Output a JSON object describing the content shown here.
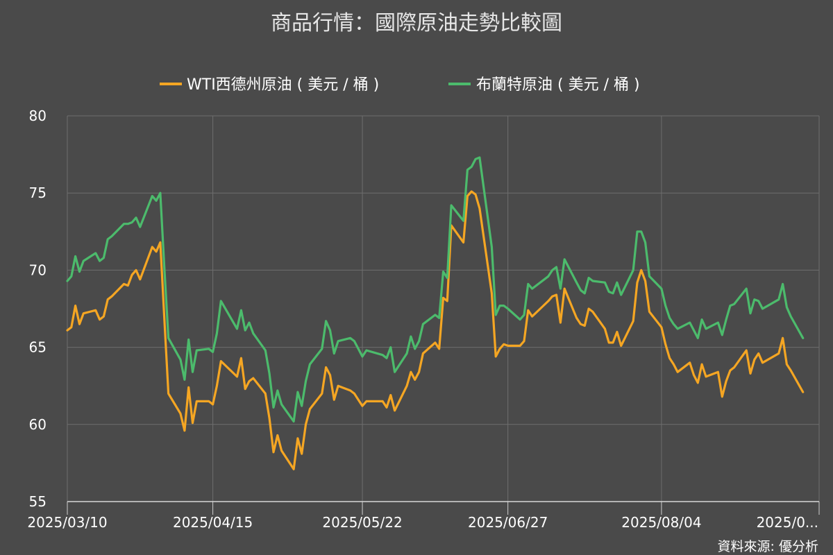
{
  "chart_data": {
    "type": "line",
    "title": "商品行情：國際原油走勢比較圖",
    "source": "資料來源: 優分析",
    "ylim": [
      55,
      80
    ],
    "yticks": [
      55,
      60,
      65,
      70,
      75,
      80
    ],
    "xlim": [
      "2025-03-10",
      "2025-09-12"
    ],
    "xtick_dates": [
      "2025-03-10",
      "2025-04-15",
      "2025-05-22",
      "2025-06-27",
      "2025-08-04",
      "2025-09-12"
    ],
    "xtick_labels": [
      "2025/03/10",
      "2025/04/15",
      "2025/05/22",
      "2025/06/27",
      "2025/08/04",
      "2025/0..."
    ],
    "grid": true,
    "legend_position": "top-center",
    "series": [
      {
        "name": "WTI西德州原油 ( 美元 / 桶 )",
        "color": "#f5a623",
        "points": [
          [
            "2025-03-10",
            66.1
          ],
          [
            "2025-03-11",
            66.3
          ],
          [
            "2025-03-12",
            67.7
          ],
          [
            "2025-03-13",
            66.5
          ],
          [
            "2025-03-14",
            67.2
          ],
          [
            "2025-03-17",
            67.4
          ],
          [
            "2025-03-18",
            66.8
          ],
          [
            "2025-03-19",
            67.0
          ],
          [
            "2025-03-20",
            68.1
          ],
          [
            "2025-03-21",
            68.3
          ],
          [
            "2025-03-24",
            69.1
          ],
          [
            "2025-03-25",
            69.0
          ],
          [
            "2025-03-26",
            69.7
          ],
          [
            "2025-03-27",
            70.0
          ],
          [
            "2025-03-28",
            69.4
          ],
          [
            "2025-03-31",
            71.5
          ],
          [
            "2025-04-01",
            71.2
          ],
          [
            "2025-04-02",
            71.8
          ],
          [
            "2025-04-03",
            66.9
          ],
          [
            "2025-04-04",
            62.0
          ],
          [
            "2025-04-07",
            60.7
          ],
          [
            "2025-04-08",
            59.6
          ],
          [
            "2025-04-09",
            62.4
          ],
          [
            "2025-04-10",
            60.1
          ],
          [
            "2025-04-11",
            61.5
          ],
          [
            "2025-04-14",
            61.5
          ],
          [
            "2025-04-15",
            61.3
          ],
          [
            "2025-04-16",
            62.5
          ],
          [
            "2025-04-17",
            64.1
          ],
          [
            "2025-04-21",
            63.1
          ],
          [
            "2025-04-22",
            64.3
          ],
          [
            "2025-04-23",
            62.3
          ],
          [
            "2025-04-24",
            62.8
          ],
          [
            "2025-04-25",
            63.0
          ],
          [
            "2025-04-28",
            62.0
          ],
          [
            "2025-04-29",
            60.4
          ],
          [
            "2025-04-30",
            58.2
          ],
          [
            "2025-05-01",
            59.3
          ],
          [
            "2025-05-02",
            58.3
          ],
          [
            "2025-05-05",
            57.1
          ],
          [
            "2025-05-06",
            59.1
          ],
          [
            "2025-05-07",
            58.1
          ],
          [
            "2025-05-08",
            60.0
          ],
          [
            "2025-05-09",
            61.0
          ],
          [
            "2025-05-12",
            62.0
          ],
          [
            "2025-05-13",
            63.7
          ],
          [
            "2025-05-14",
            63.2
          ],
          [
            "2025-05-15",
            61.6
          ],
          [
            "2025-05-16",
            62.5
          ],
          [
            "2025-05-19",
            62.2
          ],
          [
            "2025-05-20",
            62.0
          ],
          [
            "2025-05-21",
            61.6
          ],
          [
            "2025-05-22",
            61.2
          ],
          [
            "2025-05-23",
            61.5
          ],
          [
            "2025-05-27",
            61.5
          ],
          [
            "2025-05-28",
            61.1
          ],
          [
            "2025-05-29",
            61.9
          ],
          [
            "2025-05-30",
            60.9
          ],
          [
            "2025-06-02",
            62.5
          ],
          [
            "2025-06-03",
            63.4
          ],
          [
            "2025-06-04",
            62.9
          ],
          [
            "2025-06-05",
            63.4
          ],
          [
            "2025-06-06",
            64.6
          ],
          [
            "2025-06-09",
            65.3
          ],
          [
            "2025-06-10",
            64.9
          ],
          [
            "2025-06-11",
            68.2
          ],
          [
            "2025-06-12",
            68.0
          ],
          [
            "2025-06-13",
            72.9
          ],
          [
            "2025-06-16",
            71.8
          ],
          [
            "2025-06-17",
            74.8
          ],
          [
            "2025-06-18",
            75.1
          ],
          [
            "2025-06-19",
            74.9
          ],
          [
            "2025-06-20",
            74.0
          ],
          [
            "2025-06-23",
            68.5
          ],
          [
            "2025-06-24",
            64.4
          ],
          [
            "2025-06-25",
            64.9
          ],
          [
            "2025-06-26",
            65.2
          ],
          [
            "2025-06-27",
            65.1
          ],
          [
            "2025-06-30",
            65.1
          ],
          [
            "2025-07-01",
            65.4
          ],
          [
            "2025-07-02",
            67.4
          ],
          [
            "2025-07-03",
            67.0
          ],
          [
            "2025-07-07",
            68.0
          ],
          [
            "2025-07-08",
            68.3
          ],
          [
            "2025-07-09",
            68.4
          ],
          [
            "2025-07-10",
            66.6
          ],
          [
            "2025-07-11",
            68.8
          ],
          [
            "2025-07-14",
            66.9
          ],
          [
            "2025-07-15",
            66.5
          ],
          [
            "2025-07-16",
            66.4
          ],
          [
            "2025-07-17",
            67.5
          ],
          [
            "2025-07-18",
            67.3
          ],
          [
            "2025-07-21",
            66.2
          ],
          [
            "2025-07-22",
            65.3
          ],
          [
            "2025-07-23",
            65.3
          ],
          [
            "2025-07-24",
            66.0
          ],
          [
            "2025-07-25",
            65.1
          ],
          [
            "2025-07-28",
            66.7
          ],
          [
            "2025-07-29",
            69.2
          ],
          [
            "2025-07-30",
            70.0
          ],
          [
            "2025-07-31",
            69.3
          ],
          [
            "2025-08-01",
            67.3
          ],
          [
            "2025-08-04",
            66.3
          ],
          [
            "2025-08-05",
            65.2
          ],
          [
            "2025-08-06",
            64.3
          ],
          [
            "2025-08-07",
            63.9
          ],
          [
            "2025-08-08",
            63.4
          ],
          [
            "2025-08-11",
            64.0
          ],
          [
            "2025-08-12",
            63.2
          ],
          [
            "2025-08-13",
            62.7
          ],
          [
            "2025-08-14",
            63.9
          ],
          [
            "2025-08-15",
            63.1
          ],
          [
            "2025-08-18",
            63.4
          ],
          [
            "2025-08-19",
            61.8
          ],
          [
            "2025-08-20",
            62.8
          ],
          [
            "2025-08-21",
            63.5
          ],
          [
            "2025-08-22",
            63.7
          ],
          [
            "2025-08-25",
            64.8
          ],
          [
            "2025-08-26",
            63.3
          ],
          [
            "2025-08-27",
            64.2
          ],
          [
            "2025-08-28",
            64.6
          ],
          [
            "2025-08-29",
            64.0
          ],
          [
            "2025-09-02",
            64.6
          ],
          [
            "2025-09-03",
            65.6
          ],
          [
            "2025-09-04",
            63.9
          ],
          [
            "2025-09-05",
            63.5
          ],
          [
            "2025-09-08",
            62.1
          ]
        ]
      },
      {
        "name": "布蘭特原油 ( 美元 / 桶 )",
        "color": "#4cbb6c",
        "points": [
          [
            "2025-03-10",
            69.3
          ],
          [
            "2025-03-11",
            69.6
          ],
          [
            "2025-03-12",
            70.9
          ],
          [
            "2025-03-13",
            69.9
          ],
          [
            "2025-03-14",
            70.6
          ],
          [
            "2025-03-17",
            71.1
          ],
          [
            "2025-03-18",
            70.6
          ],
          [
            "2025-03-19",
            70.8
          ],
          [
            "2025-03-20",
            72.0
          ],
          [
            "2025-03-21",
            72.2
          ],
          [
            "2025-03-24",
            73.0
          ],
          [
            "2025-03-25",
            73.0
          ],
          [
            "2025-03-26",
            73.1
          ],
          [
            "2025-03-27",
            73.4
          ],
          [
            "2025-03-28",
            72.8
          ],
          [
            "2025-03-31",
            74.8
          ],
          [
            "2025-04-01",
            74.5
          ],
          [
            "2025-04-02",
            75.0
          ],
          [
            "2025-04-03",
            70.2
          ],
          [
            "2025-04-04",
            65.6
          ],
          [
            "2025-04-07",
            64.2
          ],
          [
            "2025-04-08",
            62.9
          ],
          [
            "2025-04-09",
            65.5
          ],
          [
            "2025-04-10",
            63.4
          ],
          [
            "2025-04-11",
            64.8
          ],
          [
            "2025-04-14",
            64.9
          ],
          [
            "2025-04-15",
            64.7
          ],
          [
            "2025-04-16",
            65.9
          ],
          [
            "2025-04-17",
            68.0
          ],
          [
            "2025-04-21",
            66.2
          ],
          [
            "2025-04-22",
            67.4
          ],
          [
            "2025-04-23",
            66.1
          ],
          [
            "2025-04-24",
            66.6
          ],
          [
            "2025-04-25",
            65.9
          ],
          [
            "2025-04-28",
            64.8
          ],
          [
            "2025-04-29",
            63.3
          ],
          [
            "2025-04-30",
            61.1
          ],
          [
            "2025-05-01",
            62.2
          ],
          [
            "2025-05-02",
            61.3
          ],
          [
            "2025-05-05",
            60.2
          ],
          [
            "2025-05-06",
            62.1
          ],
          [
            "2025-05-07",
            61.2
          ],
          [
            "2025-05-08",
            62.8
          ],
          [
            "2025-05-09",
            63.9
          ],
          [
            "2025-05-12",
            64.9
          ],
          [
            "2025-05-13",
            66.7
          ],
          [
            "2025-05-14",
            66.1
          ],
          [
            "2025-05-15",
            64.6
          ],
          [
            "2025-05-16",
            65.4
          ],
          [
            "2025-05-19",
            65.6
          ],
          [
            "2025-05-20",
            65.4
          ],
          [
            "2025-05-21",
            64.9
          ],
          [
            "2025-05-22",
            64.4
          ],
          [
            "2025-05-23",
            64.8
          ],
          [
            "2025-05-27",
            64.5
          ],
          [
            "2025-05-28",
            64.3
          ],
          [
            "2025-05-29",
            65.0
          ],
          [
            "2025-05-30",
            63.4
          ],
          [
            "2025-06-02",
            64.6
          ],
          [
            "2025-06-03",
            65.7
          ],
          [
            "2025-06-04",
            64.9
          ],
          [
            "2025-06-05",
            65.4
          ],
          [
            "2025-06-06",
            66.5
          ],
          [
            "2025-06-09",
            67.1
          ],
          [
            "2025-06-10",
            66.9
          ],
          [
            "2025-06-11",
            69.9
          ],
          [
            "2025-06-12",
            69.5
          ],
          [
            "2025-06-13",
            74.2
          ],
          [
            "2025-06-16",
            73.2
          ],
          [
            "2025-06-17",
            76.5
          ],
          [
            "2025-06-18",
            76.7
          ],
          [
            "2025-06-19",
            77.2
          ],
          [
            "2025-06-20",
            77.3
          ],
          [
            "2025-06-23",
            71.5
          ],
          [
            "2025-06-24",
            67.1
          ],
          [
            "2025-06-25",
            67.7
          ],
          [
            "2025-06-26",
            67.7
          ],
          [
            "2025-06-27",
            67.5
          ],
          [
            "2025-06-30",
            66.8
          ],
          [
            "2025-07-01",
            67.1
          ],
          [
            "2025-07-02",
            69.1
          ],
          [
            "2025-07-03",
            68.8
          ],
          [
            "2025-07-07",
            69.6
          ],
          [
            "2025-07-08",
            70.0
          ],
          [
            "2025-07-09",
            70.2
          ],
          [
            "2025-07-10",
            68.8
          ],
          [
            "2025-07-11",
            70.7
          ],
          [
            "2025-07-14",
            69.2
          ],
          [
            "2025-07-15",
            68.7
          ],
          [
            "2025-07-16",
            68.5
          ],
          [
            "2025-07-17",
            69.5
          ],
          [
            "2025-07-18",
            69.3
          ],
          [
            "2025-07-21",
            69.2
          ],
          [
            "2025-07-22",
            68.6
          ],
          [
            "2025-07-23",
            68.5
          ],
          [
            "2025-07-24",
            69.2
          ],
          [
            "2025-07-25",
            68.4
          ],
          [
            "2025-07-28",
            70.0
          ],
          [
            "2025-07-29",
            72.5
          ],
          [
            "2025-07-30",
            72.5
          ],
          [
            "2025-07-31",
            71.8
          ],
          [
            "2025-08-01",
            69.6
          ],
          [
            "2025-08-04",
            68.8
          ],
          [
            "2025-08-05",
            67.7
          ],
          [
            "2025-08-06",
            66.9
          ],
          [
            "2025-08-07",
            66.5
          ],
          [
            "2025-08-08",
            66.2
          ],
          [
            "2025-08-11",
            66.6
          ],
          [
            "2025-08-12",
            66.1
          ],
          [
            "2025-08-13",
            65.6
          ],
          [
            "2025-08-14",
            66.8
          ],
          [
            "2025-08-15",
            66.2
          ],
          [
            "2025-08-18",
            66.6
          ],
          [
            "2025-08-19",
            65.8
          ],
          [
            "2025-08-20",
            66.8
          ],
          [
            "2025-08-21",
            67.7
          ],
          [
            "2025-08-22",
            67.8
          ],
          [
            "2025-08-25",
            68.8
          ],
          [
            "2025-08-26",
            67.2
          ],
          [
            "2025-08-27",
            68.1
          ],
          [
            "2025-08-28",
            68.0
          ],
          [
            "2025-08-29",
            67.5
          ],
          [
            "2025-09-02",
            68.1
          ],
          [
            "2025-09-03",
            69.1
          ],
          [
            "2025-09-04",
            67.6
          ],
          [
            "2025-09-05",
            67.0
          ],
          [
            "2025-09-08",
            65.6
          ]
        ]
      }
    ]
  }
}
